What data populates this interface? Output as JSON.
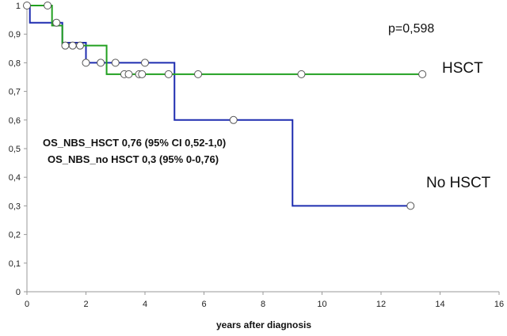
{
  "chart_data": {
    "type": "line",
    "title": "",
    "xlabel": "years after diagnosis",
    "ylabel": "",
    "xlim": [
      0,
      16
    ],
    "ylim": [
      0,
      1
    ],
    "x_ticks": [
      0,
      2,
      4,
      6,
      8,
      10,
      12,
      14,
      16
    ],
    "y_ticks": [
      0,
      0.1,
      0.2,
      0.3,
      0.4,
      0.5,
      0.6,
      0.7,
      0.8,
      0.9,
      1
    ],
    "x_tick_labels": [
      "0",
      "2",
      "4",
      "6",
      "8",
      "10",
      "12",
      "14",
      "16"
    ],
    "y_tick_labels": [
      "0",
      "0,1",
      "0,2",
      "0,3",
      "0,4",
      "0,5",
      "0,6",
      "0,7",
      "0,8",
      "0,9",
      "1"
    ],
    "grid": false,
    "p_value": "p=0,598",
    "stats_lines": [
      "OS_NBS_HSCT 0,76 (95% CI 0,52-1,0)",
      "OS_NBS_no HSCT 0,3 (95% 0-0,76)"
    ],
    "series": [
      {
        "name": "No HSCT",
        "color": "#1f2db0",
        "steps": [
          [
            0,
            1
          ],
          [
            0.1,
            0.94
          ],
          [
            1.2,
            0.87
          ],
          [
            2.0,
            0.8
          ],
          [
            5.0,
            0.6
          ],
          [
            9.0,
            0.3
          ],
          [
            13.0,
            0.3
          ]
        ],
        "censored": [
          [
            0,
            1
          ],
          [
            1.0,
            0.94
          ],
          [
            2.0,
            0.8
          ],
          [
            3.0,
            0.8
          ],
          [
            4.0,
            0.8
          ],
          [
            7.0,
            0.6
          ],
          [
            13.0,
            0.3
          ]
        ]
      },
      {
        "name": "HSCT",
        "color": "#22a020",
        "steps": [
          [
            0,
            1
          ],
          [
            0.85,
            0.93
          ],
          [
            1.2,
            0.86
          ],
          [
            2.0,
            0.86
          ],
          [
            2.7,
            0.76
          ],
          [
            13.4,
            0.76
          ]
        ],
        "censored": [
          [
            0.7,
            1
          ],
          [
            1.3,
            0.86
          ],
          [
            1.55,
            0.86
          ],
          [
            1.8,
            0.86
          ],
          [
            2.5,
            0.8
          ],
          [
            3.3,
            0.76
          ],
          [
            3.45,
            0.76
          ],
          [
            3.8,
            0.76
          ],
          [
            3.9,
            0.76
          ],
          [
            4.8,
            0.76
          ],
          [
            5.8,
            0.76
          ],
          [
            9.3,
            0.76
          ],
          [
            13.4,
            0.76
          ]
        ]
      }
    ]
  }
}
